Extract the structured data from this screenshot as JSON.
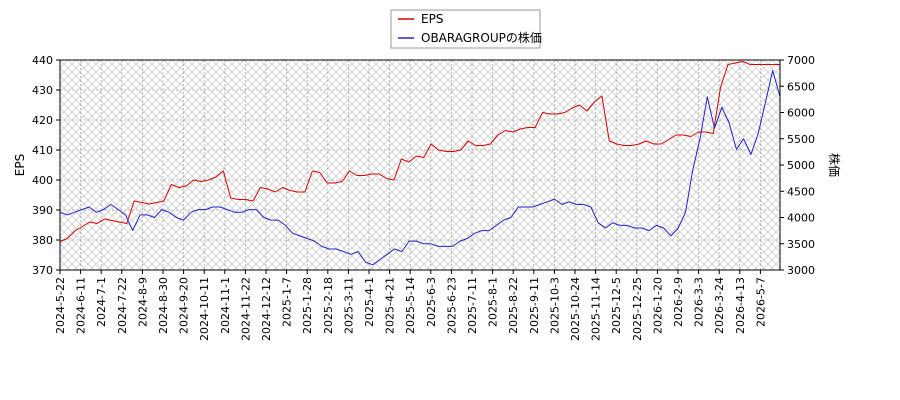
{
  "chart_data": {
    "type": "line",
    "legend": {
      "placement": "top-center",
      "items": [
        {
          "label": "EPS",
          "color": "#dd0000"
        },
        {
          "label": "OBARAGROUPの株価",
          "color": "#2222cc"
        }
      ]
    },
    "y_left": {
      "label": "EPS",
      "ticks": [
        "370",
        "380",
        "390",
        "400",
        "410",
        "420",
        "430",
        "440"
      ],
      "lim": [
        370,
        440
      ]
    },
    "y_right": {
      "label": "株価",
      "ticks": [
        "3000",
        "3500",
        "4000",
        "4500",
        "5000",
        "5500",
        "6000",
        "6500",
        "7000"
      ],
      "lim": [
        3000,
        7000
      ]
    },
    "x_ticks": [
      "2024-5-22",
      "2024-6-11",
      "2024-7-1",
      "2024-7-22",
      "2024-8-9",
      "2024-8-30",
      "2024-9-20",
      "2024-10-11",
      "2024-11-1",
      "2024-11-22",
      "2024-12-12",
      "2025-1-7",
      "2025-1-28",
      "2025-2-18",
      "2025-3-11",
      "2025-4-1",
      "2025-4-21",
      "2025-5-14",
      "2025-6-3",
      "2025-6-23",
      "2025-7-11",
      "2025-8-1",
      "2025-8-22",
      "2025-9-11",
      "2025-10-3",
      "2025-10-24",
      "2025-11-14",
      "2025-12-5",
      "2025-12-25",
      "2026-1-20",
      "2026-2-9",
      "2026-3-3",
      "2026-3-24",
      "2026-4-13",
      "2026-5-7"
    ],
    "grid": true,
    "series": [
      {
        "name": "EPS",
        "axis": "left",
        "color": "#dd0000",
        "values": [
          379.5,
          380.5,
          383,
          384.5,
          386,
          385.5,
          387,
          386.5,
          386,
          385.5,
          393,
          392.5,
          392,
          392.5,
          393,
          398.5,
          397.5,
          398,
          400,
          399.5,
          400,
          401,
          403,
          394,
          393.5,
          393.5,
          393,
          397.5,
          397,
          396,
          397.5,
          396.5,
          396,
          396,
          403,
          402.5,
          399,
          399,
          399.5,
          403,
          401.5,
          401.5,
          402,
          402,
          400.5,
          400,
          407,
          406,
          408,
          407.5,
          412,
          410,
          409.5,
          409.5,
          410,
          413,
          411.5,
          411.5,
          412,
          415,
          416.5,
          416,
          417,
          417.5,
          417.5,
          422.5,
          422,
          422,
          422.5,
          424,
          425,
          423,
          426,
          428,
          413,
          412,
          411.5,
          411.5,
          412,
          413,
          412,
          412,
          413.5,
          415,
          415,
          414.5,
          416,
          416,
          415.5,
          431,
          438.5,
          439,
          439.5,
          438.5,
          438.5,
          438.5,
          438.5,
          438.5
        ]
      },
      {
        "name": "OBARAGROUPの株価",
        "axis": "right",
        "color": "#2222cc",
        "values": [
          4100,
          4050,
          4100,
          4150,
          4200,
          4100,
          4150,
          4250,
          4150,
          4050,
          3750,
          4050,
          4050,
          4000,
          4150,
          4100,
          4000,
          3950,
          4100,
          4150,
          4150,
          4200,
          4200,
          4150,
          4100,
          4100,
          4150,
          4150,
          4000,
          3950,
          3950,
          3850,
          3700,
          3650,
          3600,
          3550,
          3450,
          3400,
          3400,
          3350,
          3300,
          3350,
          3150,
          3100,
          3200,
          3300,
          3400,
          3350,
          3550,
          3550,
          3500,
          3500,
          3450,
          3450,
          3450,
          3550,
          3600,
          3700,
          3750,
          3750,
          3850,
          3950,
          4000,
          4200,
          4200,
          4200,
          4250,
          4300,
          4350,
          4250,
          4300,
          4250,
          4250,
          4200,
          3900,
          3800,
          3900,
          3850,
          3850,
          3800,
          3800,
          3750,
          3850,
          3800,
          3650,
          3800,
          4100,
          4900,
          5500,
          6300,
          5700,
          6100,
          5800,
          5300,
          5500,
          5200,
          5600,
          6200,
          6800,
          6300
        ]
      }
    ]
  }
}
